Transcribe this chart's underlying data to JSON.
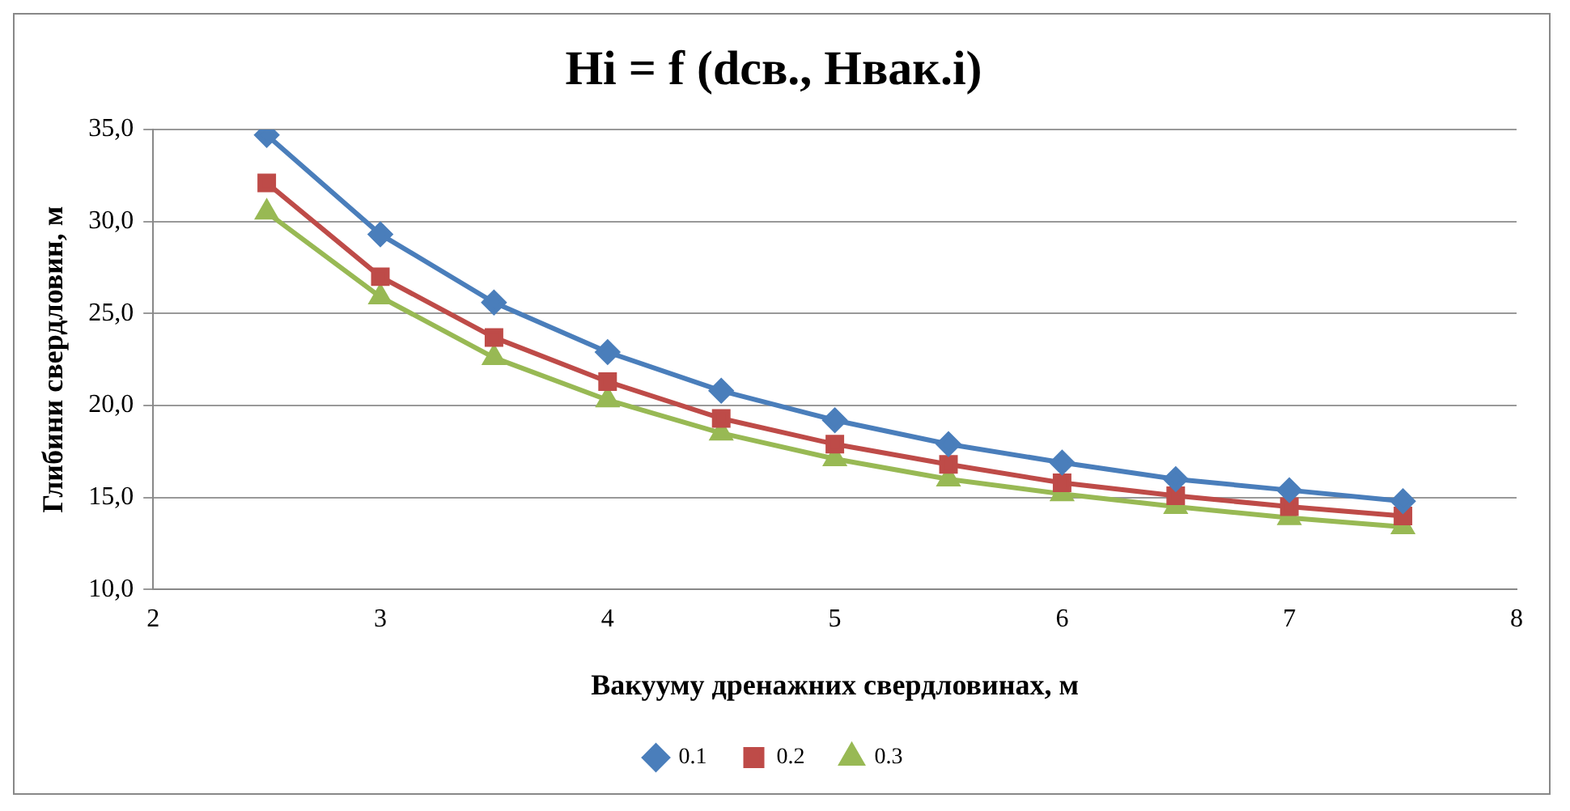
{
  "chart_data": {
    "type": "line",
    "title": "Hi = f (dсв., Hвак.i)",
    "xlabel": "Вакууму дренажних свердловинах, м",
    "ylabel": "Глибини свердловин, м",
    "x": [
      2.5,
      3,
      3.5,
      4,
      4.5,
      5,
      5.5,
      6,
      6.5,
      7,
      7.5
    ],
    "series": [
      {
        "name": "0.1",
        "color": "#4a7ebb",
        "marker": "diamond",
        "values": [
          34.7,
          29.3,
          25.6,
          22.9,
          20.8,
          19.2,
          17.9,
          16.9,
          16.0,
          15.4,
          14.8
        ]
      },
      {
        "name": "0.2",
        "color": "#be4b48",
        "marker": "square",
        "values": [
          32.1,
          27.0,
          23.7,
          21.3,
          19.3,
          17.9,
          16.8,
          15.8,
          15.1,
          14.5,
          14.0
        ]
      },
      {
        "name": "0.3",
        "color": "#98b954",
        "marker": "triangle",
        "values": [
          30.5,
          25.9,
          22.6,
          20.3,
          18.5,
          17.1,
          16.0,
          15.2,
          14.5,
          13.9,
          13.4
        ]
      }
    ],
    "xlim": [
      2,
      8
    ],
    "xticks": [
      2,
      3,
      4,
      5,
      6,
      7,
      8
    ],
    "ylim": [
      10,
      35
    ],
    "yticks": [
      {
        "value": 10,
        "label": "10,0"
      },
      {
        "value": 15,
        "label": "15,0"
      },
      {
        "value": 20,
        "label": "20,0"
      },
      {
        "value": 25,
        "label": "25,0"
      },
      {
        "value": 30,
        "label": "30,0"
      },
      {
        "value": 35,
        "label": "35,0"
      }
    ],
    "grid": "y",
    "legend": "bottom",
    "line_style": "solid"
  }
}
